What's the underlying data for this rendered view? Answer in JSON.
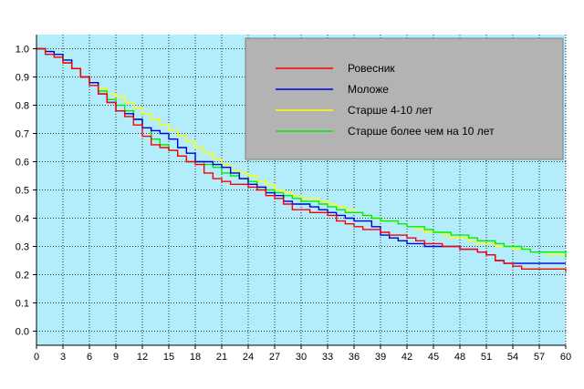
{
  "chart_data": {
    "type": "line",
    "title": "",
    "xlabel": "",
    "ylabel": "",
    "xlim": [
      0,
      60
    ],
    "ylim": [
      -0.05,
      1.05
    ],
    "xticks": [
      0,
      3,
      6,
      9,
      12,
      15,
      18,
      21,
      24,
      27,
      30,
      33,
      36,
      39,
      42,
      45,
      48,
      51,
      54,
      57,
      60
    ],
    "yticks": [
      0.0,
      0.1,
      0.2,
      0.3,
      0.4,
      0.5,
      0.6,
      0.7,
      0.8,
      0.9,
      1.0
    ],
    "grid": true,
    "step": true,
    "plot_background": "#b3ecfb",
    "legend_background": "#b3b3b3",
    "legend_position": "top-right",
    "series": [
      {
        "name": "Ровесник",
        "color": "#ff0000",
        "x": [
          0,
          1,
          2,
          3,
          4,
          5,
          6,
          7,
          8,
          9,
          10,
          11,
          12,
          13,
          14,
          15,
          16,
          17,
          18,
          19,
          20,
          21,
          22,
          23,
          24,
          25,
          26,
          27,
          28,
          29,
          30,
          31,
          32,
          33,
          34,
          35,
          36,
          37,
          38,
          39,
          40,
          41,
          42,
          43,
          44,
          45,
          46,
          47,
          48,
          49,
          50,
          51,
          52,
          53,
          54,
          55,
          56,
          57,
          58,
          59,
          60
        ],
        "y": [
          1.0,
          0.98,
          0.97,
          0.95,
          0.93,
          0.9,
          0.87,
          0.84,
          0.81,
          0.78,
          0.76,
          0.73,
          0.69,
          0.66,
          0.65,
          0.64,
          0.62,
          0.6,
          0.59,
          0.56,
          0.54,
          0.53,
          0.52,
          0.52,
          0.51,
          0.5,
          0.48,
          0.47,
          0.45,
          0.43,
          0.43,
          0.42,
          0.42,
          0.41,
          0.39,
          0.38,
          0.37,
          0.36,
          0.36,
          0.35,
          0.34,
          0.34,
          0.33,
          0.32,
          0.31,
          0.31,
          0.3,
          0.3,
          0.29,
          0.29,
          0.28,
          0.27,
          0.25,
          0.24,
          0.23,
          0.22,
          0.22,
          0.22,
          0.22,
          0.22,
          0.21
        ]
      },
      {
        "name": "Моложе",
        "color": "#0000dd",
        "x": [
          0,
          1,
          2,
          3,
          4,
          5,
          6,
          7,
          8,
          9,
          10,
          11,
          12,
          13,
          14,
          15,
          16,
          17,
          18,
          19,
          20,
          21,
          22,
          23,
          24,
          25,
          26,
          27,
          28,
          29,
          30,
          31,
          32,
          33,
          34,
          35,
          36,
          37,
          38,
          39,
          40,
          41,
          42,
          43,
          44,
          45,
          46,
          47,
          48,
          49,
          50,
          51,
          52,
          53,
          54,
          55,
          56,
          57,
          58,
          59,
          60
        ],
        "y": [
          1.0,
          0.99,
          0.98,
          0.96,
          0.93,
          0.9,
          0.88,
          0.84,
          0.81,
          0.78,
          0.77,
          0.75,
          0.72,
          0.71,
          0.7,
          0.68,
          0.65,
          0.63,
          0.6,
          0.6,
          0.59,
          0.58,
          0.56,
          0.54,
          0.52,
          0.51,
          0.49,
          0.48,
          0.46,
          0.45,
          0.45,
          0.44,
          0.43,
          0.42,
          0.41,
          0.4,
          0.39,
          0.39,
          0.37,
          0.34,
          0.33,
          0.32,
          0.31,
          0.31,
          0.3,
          0.3,
          0.3,
          0.3,
          0.29,
          0.29,
          0.28,
          0.27,
          0.25,
          0.24,
          0.24,
          0.24,
          0.24,
          0.24,
          0.24,
          0.24,
          0.24
        ]
      },
      {
        "name": "Старше 4-10 лет",
        "color": "#ffff00",
        "x": [
          0,
          1,
          2,
          3,
          4,
          5,
          6,
          7,
          8,
          9,
          10,
          11,
          12,
          13,
          14,
          15,
          16,
          17,
          18,
          19,
          20,
          21,
          22,
          23,
          24,
          25,
          26,
          27,
          28,
          29,
          30,
          31,
          32,
          33,
          34,
          35,
          36,
          37,
          38,
          39,
          40,
          41,
          42,
          43,
          44,
          45,
          46,
          47,
          48,
          49,
          50,
          51,
          52,
          53,
          54,
          55,
          56,
          57,
          58,
          59,
          60
        ],
        "y": [
          1.0,
          0.99,
          0.97,
          0.95,
          0.93,
          0.9,
          0.88,
          0.86,
          0.84,
          0.83,
          0.81,
          0.79,
          0.77,
          0.75,
          0.73,
          0.71,
          0.69,
          0.67,
          0.65,
          0.63,
          0.61,
          0.59,
          0.57,
          0.56,
          0.55,
          0.53,
          0.52,
          0.5,
          0.49,
          0.48,
          0.47,
          0.47,
          0.46,
          0.45,
          0.44,
          0.43,
          0.42,
          0.41,
          0.4,
          0.39,
          0.39,
          0.38,
          0.37,
          0.36,
          0.35,
          0.35,
          0.34,
          0.33,
          0.33,
          0.32,
          0.31,
          0.31,
          0.3,
          0.3,
          0.29,
          0.29,
          0.28,
          0.28,
          0.27,
          0.27,
          0.27
        ]
      },
      {
        "name": "Старше более чем на 10 лет",
        "color": "#00ee00",
        "x": [
          0,
          1,
          2,
          3,
          4,
          5,
          6,
          7,
          8,
          9,
          10,
          11,
          12,
          13,
          14,
          15,
          16,
          17,
          18,
          19,
          20,
          21,
          22,
          23,
          24,
          25,
          26,
          27,
          28,
          29,
          30,
          31,
          32,
          33,
          34,
          35,
          36,
          37,
          38,
          39,
          40,
          41,
          42,
          43,
          44,
          45,
          46,
          47,
          48,
          49,
          50,
          51,
          52,
          53,
          54,
          55,
          56,
          57,
          58,
          59,
          60
        ],
        "y": [
          1.0,
          0.99,
          0.97,
          0.95,
          0.93,
          0.9,
          0.88,
          0.85,
          0.82,
          0.8,
          0.78,
          0.75,
          0.72,
          0.68,
          0.66,
          0.64,
          0.62,
          0.6,
          0.6,
          0.59,
          0.58,
          0.56,
          0.55,
          0.54,
          0.53,
          0.51,
          0.5,
          0.49,
          0.48,
          0.47,
          0.46,
          0.46,
          0.45,
          0.44,
          0.43,
          0.42,
          0.42,
          0.41,
          0.4,
          0.39,
          0.39,
          0.38,
          0.37,
          0.37,
          0.36,
          0.35,
          0.35,
          0.34,
          0.34,
          0.33,
          0.32,
          0.32,
          0.31,
          0.3,
          0.3,
          0.29,
          0.28,
          0.28,
          0.28,
          0.28,
          0.26
        ]
      }
    ]
  }
}
